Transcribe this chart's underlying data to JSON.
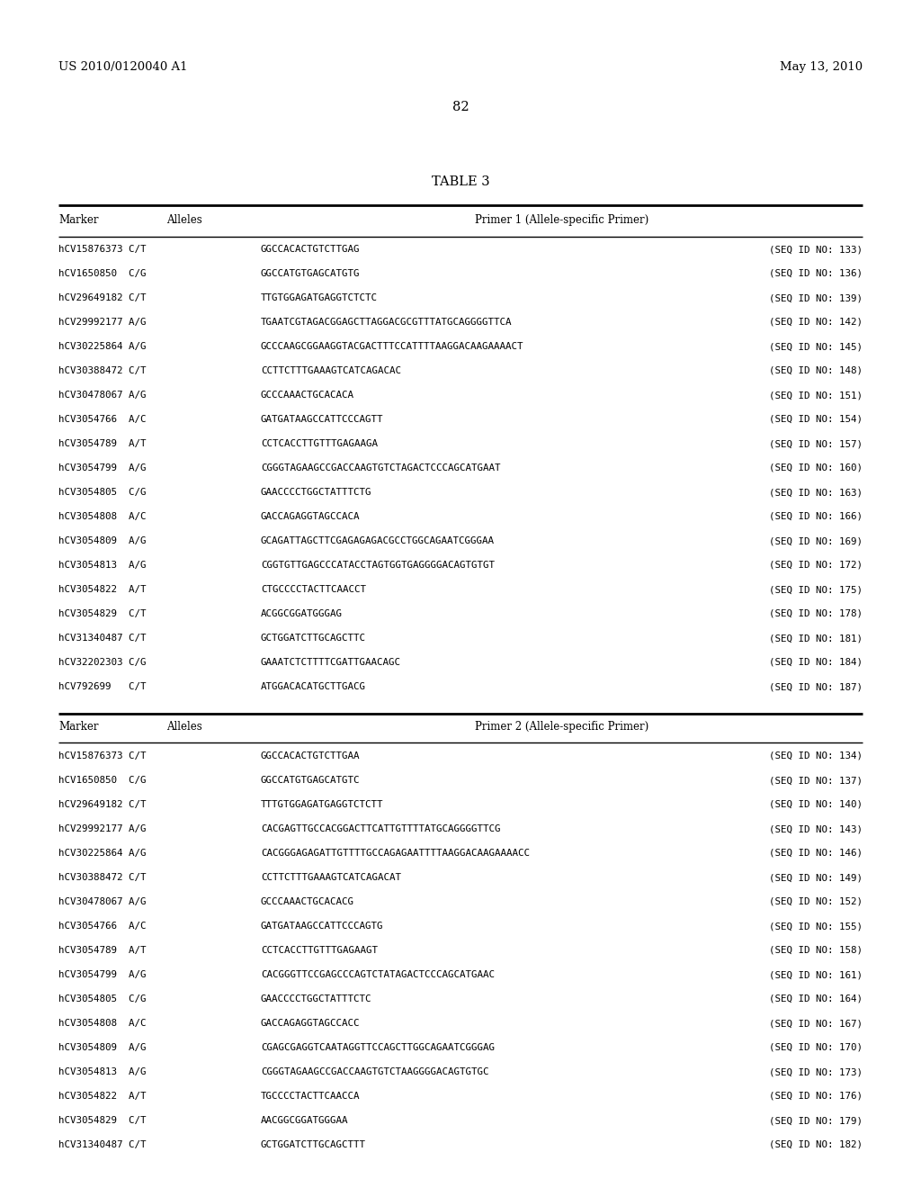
{
  "header_left": "US 2010/0120040 A1",
  "header_right": "May 13, 2010",
  "page_number": "82",
  "table_title": "TABLE 3",
  "section1_header": [
    "Marker",
    "Alleles",
    "Primer 1 (Allele-specific Primer)"
  ],
  "section1_rows": [
    [
      "hCV15876373 C/T",
      "GGCCACACTGTCTTGAG",
      "(SEQ ID NO: 133)"
    ],
    [
      "hCV1650850  C/G",
      "GGCCATGTGAGCATGTG",
      "(SEQ ID NO: 136)"
    ],
    [
      "hCV29649182 C/T",
      "TTGTGGAGATGAGGTCTCTC",
      "(SEQ ID NO: 139)"
    ],
    [
      "hCV29992177 A/G",
      "TGAATCGTAGACGGAGCTTAGGACGCGTTTATGCAGGGGTTCA",
      "(SEQ ID NO: 142)"
    ],
    [
      "hCV30225864 A/G",
      "GCCCAAGCGGAAGGTACGACTTTCCATTTTAAGGACAAGAAAACT",
      "(SEQ ID NO: 145)"
    ],
    [
      "hCV30388472 C/T",
      "CCTTCTTTGAAAGTCATCAGACAC",
      "(SEQ ID NO: 148)"
    ],
    [
      "hCV30478067 A/G",
      "GCCCAAACTGCACACA",
      "(SEQ ID NO: 151)"
    ],
    [
      "hCV3054766  A/C",
      "GATGATAAGCCATTCCCAGTT",
      "(SEQ ID NO: 154)"
    ],
    [
      "hCV3054789  A/T",
      "CCTCACCTTGTTTGAGAAGA",
      "(SEQ ID NO: 157)"
    ],
    [
      "hCV3054799  A/G",
      "CGGGTAGAAGCCGACCAAGTGTCTAGACTCCCAGCATGAAT",
      "(SEQ ID NO: 160)"
    ],
    [
      "hCV3054805  C/G",
      "GAACCCCTGGCTATTTCTG",
      "(SEQ ID NO: 163)"
    ],
    [
      "hCV3054808  A/C",
      "GACCAGAGGTAGCCACA",
      "(SEQ ID NO: 166)"
    ],
    [
      "hCV3054809  A/G",
      "GCAGATTAGCTTCGAGAGAGACGCCTGGCAGAATCGGGAA",
      "(SEQ ID NO: 169)"
    ],
    [
      "hCV3054813  A/G",
      "CGGTGTTGAGCCCATACCTAGTGGTGAGGGGACAGTGTGT",
      "(SEQ ID NO: 172)"
    ],
    [
      "hCV3054822  A/T",
      "CTGCCCCTACTTCAACCT",
      "(SEQ ID NO: 175)"
    ],
    [
      "hCV3054829  C/T",
      "ACGGCGGATGGGAG",
      "(SEQ ID NO: 178)"
    ],
    [
      "hCV31340487 C/T",
      "GCTGGATCTTGCAGCTTC",
      "(SEQ ID NO: 181)"
    ],
    [
      "hCV32202303 C/G",
      "GAAATCTCTTTTCGATTGAACAGC",
      "(SEQ ID NO: 184)"
    ],
    [
      "hCV792699   C/T",
      "ATGGACACATGCTTGACG",
      "(SEQ ID NO: 187)"
    ]
  ],
  "section2_header": [
    "Marker",
    "Alleles",
    "Primer 2 (Allele-specific Primer)"
  ],
  "section2_rows": [
    [
      "hCV15876373 C/T",
      "GGCCACACTGTCTTGAA",
      "(SEQ ID NO: 134)"
    ],
    [
      "hCV1650850  C/G",
      "GGCCATGTGAGCATGTC",
      "(SEQ ID NO: 137)"
    ],
    [
      "hCV29649182 C/T",
      "TTTGTGGAGATGAGGTCTCTT",
      "(SEQ ID NO: 140)"
    ],
    [
      "hCV29992177 A/G",
      "CACGAGTTGCCACGGACTTCATTGTTTTATGCAGGGGTTCG",
      "(SEQ ID NO: 143)"
    ],
    [
      "hCV30225864 A/G",
      "CACGGGAGAGATTGTTTTGCCAGAGAATTTTAAGGACAAGAAAACC",
      "(SEQ ID NO: 146)"
    ],
    [
      "hCV30388472 C/T",
      "CCTTCTTTGAAAGTCATCAGACAT",
      "(SEQ ID NO: 149)"
    ],
    [
      "hCV30478067 A/G",
      "GCCCAAACTGCACACG",
      "(SEQ ID NO: 152)"
    ],
    [
      "hCV3054766  A/C",
      "GATGATAAGCCATTCCCAGTG",
      "(SEQ ID NO: 155)"
    ],
    [
      "hCV3054789  A/T",
      "CCTCACCTTGTTTGAGAAGT",
      "(SEQ ID NO: 158)"
    ],
    [
      "hCV3054799  A/G",
      "CACGGGTTCCGAGCCCAGTCTATAGACTCCCAGCATGAAC",
      "(SEQ ID NO: 161)"
    ],
    [
      "hCV3054805  C/G",
      "GAACCCCTGGCTATTTCTC",
      "(SEQ ID NO: 164)"
    ],
    [
      "hCV3054808  A/C",
      "GACCAGAGGTAGCCACC",
      "(SEQ ID NO: 167)"
    ],
    [
      "hCV3054809  A/G",
      "CGAGCGAGGTCAATAGGTTCCAGCTTGGCAGAATCGGGAG",
      "(SEQ ID NO: 170)"
    ],
    [
      "hCV3054813  A/G",
      "CGGGTAGAAGCCGACCAAGTGTCTAAGGGGACAGTGTGC",
      "(SEQ ID NO: 173)"
    ],
    [
      "hCV3054822  A/T",
      "TGCCCCTACTTCAACCA",
      "(SEQ ID NO: 176)"
    ],
    [
      "hCV3054829  C/T",
      "AACGGCGGATGGGAA",
      "(SEQ ID NO: 179)"
    ],
    [
      "hCV31340487 C/T",
      "GCTGGATCTTGCAGCTTT",
      "(SEQ ID NO: 182)"
    ]
  ],
  "bg_color": "#ffffff",
  "text_color": "#000000",
  "mono_fs": 7.8,
  "serif_fs": 8.5,
  "header_fs": 9.5,
  "title_fs": 10.5
}
